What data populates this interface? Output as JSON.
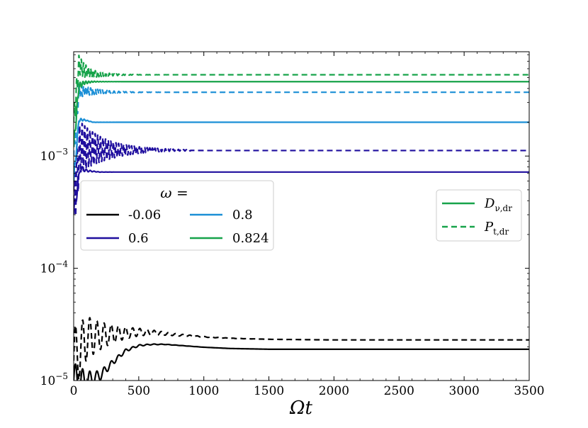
{
  "chart_data": {
    "type": "line",
    "xlabel": "Ωt",
    "ylabel": "",
    "xlim": [
      0,
      3500
    ],
    "ylim": [
      1e-05,
      0.0085
    ],
    "yscale": "log",
    "x_ticks": [
      0,
      500,
      1000,
      1500,
      2000,
      2500,
      3000,
      3500
    ],
    "x_tick_labels": [
      "0",
      "500",
      "1000",
      "1500",
      "2000",
      "2500",
      "3000",
      "3500"
    ],
    "y_ticks": [
      1e-05,
      0.0001,
      0.001
    ],
    "y_tick_labels": [
      {
        "base": "10",
        "exp": "−5"
      },
      {
        "base": "10",
        "exp": "−4"
      },
      {
        "base": "10",
        "exp": "−3"
      }
    ],
    "legend_omega": {
      "title": "ω =",
      "placement": "center-left",
      "entries": [
        {
          "label": "-0.06",
          "color": "#000000"
        },
        {
          "label": "0.6",
          "color": "#1f0e9e"
        },
        {
          "label": "0.8",
          "color": "#1b8fd6"
        },
        {
          "label": "0.824",
          "color": "#17a34a"
        }
      ]
    },
    "legend_style": {
      "placement": "center-right",
      "entries": [
        {
          "base": "D",
          "sub": "ν,dr",
          "style": "solid"
        },
        {
          "base": "P",
          "sub": "t,dr",
          "style": "dashed"
        }
      ]
    },
    "series": [
      {
        "omega": "-0.06",
        "quantity": "D_nu_dr",
        "style": "solid",
        "color": "#000000",
        "x": [
          0,
          100,
          200,
          300,
          400,
          500,
          600,
          700,
          800,
          1000,
          1200,
          1500,
          2000,
          2500,
          3000,
          3500
        ],
        "y": [
          1e-05,
          1e-05,
          1.1e-05,
          1.45e-05,
          1.85e-05,
          2.05e-05,
          2.1e-05,
          2.1e-05,
          2.06e-05,
          1.98e-05,
          1.93e-05,
          1.9e-05,
          1.9e-05,
          1.9e-05,
          1.9e-05,
          1.9e-05
        ],
        "osc_amp": 0.16,
        "osc_period": 55,
        "osc_decay": 160
      },
      {
        "omega": "-0.06",
        "quantity": "P_t_dr",
        "style": "dashed",
        "color": "#000000",
        "x": [
          0,
          100,
          200,
          300,
          400,
          500,
          600,
          700,
          800,
          1000,
          1200,
          1500,
          2000,
          2500,
          3000,
          3500
        ],
        "y": [
          1.5e-05,
          2.4e-05,
          2.5e-05,
          2.6e-05,
          2.65e-05,
          2.7e-05,
          2.68e-05,
          2.62e-05,
          2.55e-05,
          2.45e-05,
          2.38e-05,
          2.33e-05,
          2.3e-05,
          2.3e-05,
          2.3e-05,
          2.3e-05
        ],
        "osc_amp": 0.3,
        "osc_period": 55,
        "osc_decay": 230
      },
      {
        "omega": "0.6",
        "quantity": "D_nu_dr",
        "style": "solid",
        "color": "#1f0e9e",
        "x": [
          0,
          50,
          100,
          200,
          300,
          500,
          1000,
          1500,
          2000,
          2500,
          3000,
          3500
        ],
        "y": [
          0.0003,
          0.00078,
          0.00074,
          0.00072,
          0.00072,
          0.00072,
          0.00072,
          0.00072,
          0.00072,
          0.00072,
          0.00072,
          0.00072
        ],
        "osc_amp": 0.08,
        "osc_period": 30,
        "osc_decay": 50
      },
      {
        "omega": "0.6",
        "quantity": "P_t_dr",
        "style": "dashed",
        "color": "#1f0e9e",
        "x": [
          0,
          50,
          100,
          200,
          300,
          500,
          700,
          1000,
          1500,
          2000,
          2500,
          3000,
          3500
        ],
        "y": [
          0.0004,
          0.0012,
          0.00118,
          0.00115,
          0.00113,
          0.00113,
          0.00113,
          0.00112,
          0.00112,
          0.00112,
          0.00112,
          0.00112,
          0.00112
        ],
        "osc_amp": 0.3,
        "osc_period": 20,
        "osc_decay": 220
      },
      {
        "omega": "0.8",
        "quantity": "D_nu_dr",
        "style": "solid",
        "color": "#1b8fd6",
        "x": [
          0,
          40,
          80,
          150,
          300,
          500,
          1000,
          1500,
          2000,
          2500,
          3000,
          3500
        ],
        "y": [
          0.0006,
          0.0021,
          0.0021,
          0.002,
          0.002,
          0.002,
          0.002,
          0.002,
          0.002,
          0.002,
          0.002,
          0.002
        ],
        "osc_amp": 0.05,
        "osc_period": 25,
        "osc_decay": 40
      },
      {
        "omega": "0.8",
        "quantity": "P_t_dr",
        "style": "dashed",
        "color": "#1b8fd6",
        "x": [
          0,
          40,
          80,
          150,
          300,
          500,
          1000,
          1500,
          2000,
          2500,
          3000,
          3500
        ],
        "y": [
          0.001,
          0.0038,
          0.0038,
          0.00375,
          0.00372,
          0.0037,
          0.0037,
          0.0037,
          0.0037,
          0.0037,
          0.0037,
          0.0037
        ],
        "osc_amp": 0.08,
        "osc_period": 18,
        "osc_decay": 140
      },
      {
        "omega": "0.824",
        "quantity": "D_nu_dr",
        "style": "solid",
        "color": "#17a34a",
        "x": [
          0,
          40,
          80,
          150,
          300,
          500,
          1000,
          1500,
          2000,
          2500,
          3000,
          3500
        ],
        "y": [
          0.0012,
          0.0042,
          0.0045,
          0.0046,
          0.0046,
          0.0046,
          0.0046,
          0.0046,
          0.0046,
          0.0046,
          0.0046,
          0.0046
        ],
        "osc_amp": 0.06,
        "osc_period": 22,
        "osc_decay": 60
      },
      {
        "omega": "0.824",
        "quantity": "P_t_dr",
        "style": "dashed",
        "color": "#17a34a",
        "x": [
          0,
          40,
          80,
          150,
          300,
          500,
          1000,
          1500,
          2000,
          2500,
          3000,
          3500
        ],
        "y": [
          0.002,
          0.0065,
          0.0058,
          0.0054,
          0.0053,
          0.0053,
          0.0053,
          0.0053,
          0.0053,
          0.0053,
          0.0053,
          0.0053
        ],
        "osc_amp": 0.12,
        "osc_period": 18,
        "osc_decay": 120
      }
    ]
  }
}
